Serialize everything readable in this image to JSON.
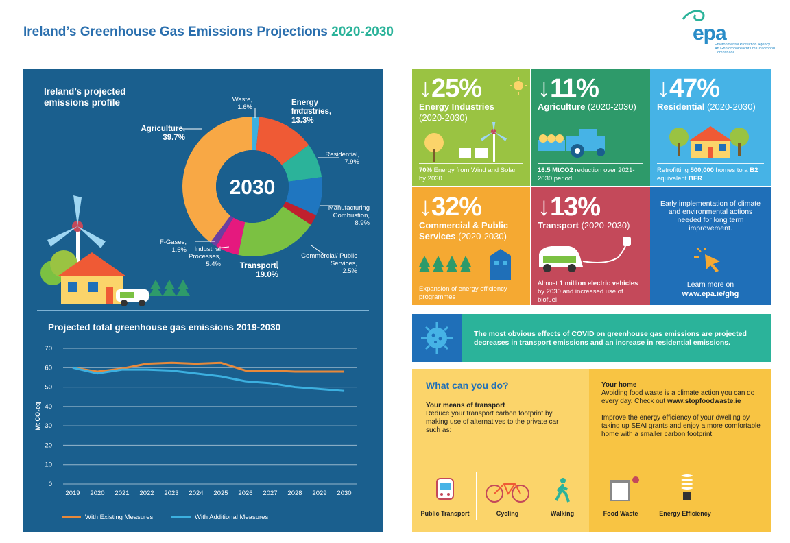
{
  "header": {
    "title": "Ireland’s Greenhouse Gas Emissions Projections",
    "years": "2020-2030"
  },
  "logo": {
    "text": "epa",
    "sub1": "Environmental Protection Agency",
    "sub2": "An Ghníomhaireacht um Chaomhnú Comhshaoil"
  },
  "profile": {
    "title": "Ireland’s projected emissions profile",
    "center_label": "2030",
    "slices": [
      {
        "name": "Waste,",
        "value_label": "1.6%",
        "value": 1.6,
        "color": "#3cb0e0"
      },
      {
        "name": "Energy Industries,",
        "value_label": "13.3%",
        "value": 13.3,
        "color": "#ef5a35"
      },
      {
        "name": "Residential,",
        "value_label": "7.9%",
        "value": 7.9,
        "color": "#2bb39a"
      },
      {
        "name": "Manufacturing Combustion,",
        "value_label": "8.9%",
        "value": 8.9,
        "color": "#1f76c0"
      },
      {
        "name": "Commercial/ Public Services,",
        "value_label": "2.5%",
        "value": 2.5,
        "color": "#c0202e"
      },
      {
        "name": "Transport,",
        "value_label": "19.0%",
        "value": 19.0,
        "color": "#7bc142"
      },
      {
        "name": "Industrial Processes,",
        "value_label": "5.4%",
        "value": 5.4,
        "color": "#e5197e"
      },
      {
        "name": "F-Gases,",
        "value_label": "1.6%",
        "value": 1.6,
        "color": "#6b3fa0"
      },
      {
        "name": "Agriculture,",
        "value_label": "39.7%",
        "value": 39.7,
        "color": "#f8a845"
      }
    ]
  },
  "emissions": {
    "title": "Projected total greenhouse gas emissions 2019-2030",
    "chart_data": {
      "type": "line",
      "x": [
        "2019",
        "2020",
        "2021",
        "2022",
        "2023",
        "2024",
        "2025",
        "2026",
        "2027",
        "2028",
        "2029",
        "2030"
      ],
      "ylabel": "Mt CO₂eq",
      "ylim": [
        0,
        70
      ],
      "yticks": [
        "0",
        "10",
        "20",
        "30",
        "40",
        "50",
        "60",
        "70"
      ],
      "series": [
        {
          "name": "With Existing Measures",
          "color": "#e8893a",
          "values": [
            60,
            58,
            59.5,
            62,
            62.5,
            62,
            62.5,
            58.5,
            58.5,
            58,
            58,
            58
          ]
        },
        {
          "name": "With Additional Measures",
          "color": "#3cb0e0",
          "values": [
            60,
            57,
            59,
            59,
            58.5,
            57,
            55.5,
            53,
            52,
            50,
            49,
            48
          ]
        }
      ],
      "legend_position": "bottom"
    }
  },
  "tiles": {
    "energy": {
      "pct": "↓25%",
      "sector": "Energy Industries",
      "period": "(2020-2030)",
      "note_bold": "70%",
      "note": " Energy from Wind and Solar by 2030",
      "color": "#9ac342"
    },
    "agri": {
      "pct": "↓11%",
      "sector": "Agriculture",
      "period": "(2020-2030)",
      "note_bold": "16.5 MtCO2",
      "note": " reduction over 2021-2030 period",
      "color": "#2e9a6a"
    },
    "resid": {
      "pct": "↓47%",
      "sector": "Residential",
      "period": "(2020-2030)",
      "note_pre": "Retrofitting ",
      "note_bold": "500,000",
      "note_mid": " homes to a ",
      "note_bold2": "B2",
      "note_mid2": " equivalent ",
      "note_bold3": "BER",
      "color": "#46b3e6"
    },
    "comm": {
      "pct": "↓32%",
      "sector": "Commercial & Public Services",
      "period": "(2020-2030)",
      "note": "Expansion of energy efficiency programmes",
      "color": "#f5a932"
    },
    "trans": {
      "pct": "↓13%",
      "sector": "Transport",
      "period": "(2020-2030)",
      "note_pre": "Almost ",
      "note_bold": "1 million electric vehicles",
      "note": " by 2030 and increased use of biofuel",
      "color": "#c4495a"
    },
    "early": {
      "text": "Early implementation of climate and environmental actions needed for long term improvement.",
      "learn": "Learn more on",
      "url": "www.epa.ie/ghg",
      "color": "#1f6fb8"
    }
  },
  "covid": {
    "text": "The most obvious effects of COVID on greenhouse gas emissions are projected decreases in transport emissions and an increase in residential emissions."
  },
  "what": {
    "title": "What can you do?",
    "transport_h": "Your means of transport",
    "transport_t": "Reduce your transport carbon footprint by making use of alternatives to the private car such as:",
    "home_h": "Your home",
    "home_t1": "Avoiding food waste is a climate action you can do every day. Check out ",
    "home_t1_bold": "www.stopfoodwaste.ie",
    "home_t2": "Improve the energy efficiency of your dwelling by taking up SEAI grants and enjoy a more comfortable home with a smaller carbon footprint",
    "actions": [
      "Public Transport",
      "Cycling",
      "Walking",
      "Food Waste",
      "Energy Efficiency"
    ]
  }
}
